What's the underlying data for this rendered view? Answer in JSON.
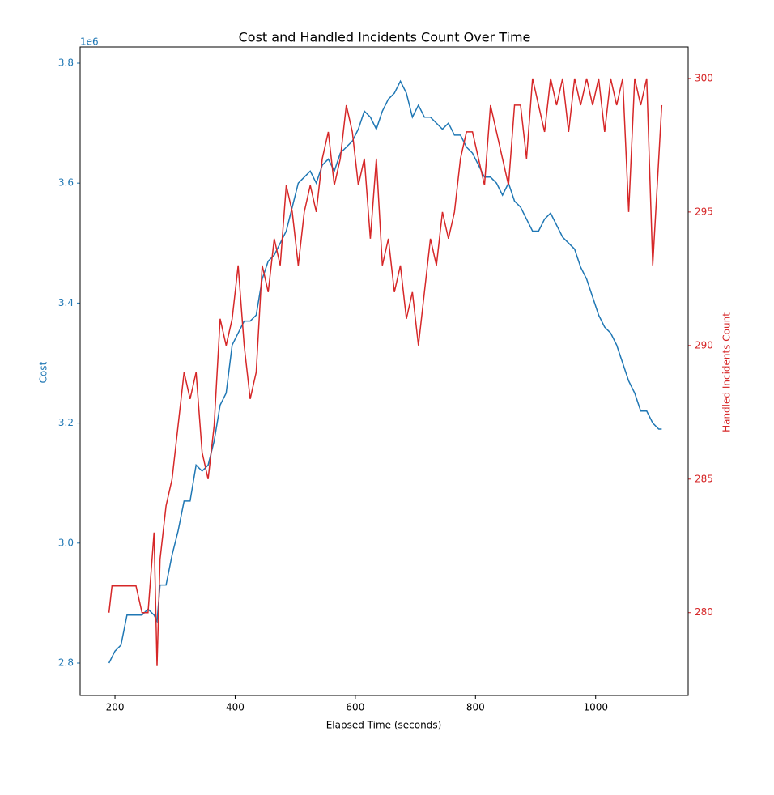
{
  "chart_data": {
    "type": "line",
    "title": "Cost and Handled Incidents Count Over Time",
    "xlabel": "Elapsed Time (seconds)",
    "ylabel": "Cost",
    "y2label": "Handled Incidents Count",
    "y_offset_label": "1e6",
    "x": [
      190,
      195,
      200,
      210,
      220,
      225,
      235,
      245,
      255,
      265,
      270,
      275,
      285,
      295,
      305,
      315,
      325,
      335,
      345,
      355,
      365,
      375,
      385,
      395,
      405,
      415,
      425,
      435,
      445,
      455,
      465,
      475,
      485,
      495,
      505,
      515,
      525,
      535,
      545,
      555,
      565,
      575,
      585,
      595,
      605,
      615,
      625,
      635,
      645,
      655,
      665,
      675,
      685,
      695,
      705,
      715,
      725,
      735,
      745,
      755,
      765,
      775,
      785,
      795,
      805,
      815,
      825,
      835,
      845,
      855,
      865,
      875,
      885,
      895,
      905,
      915,
      925,
      935,
      945,
      955,
      965,
      975,
      985,
      995,
      1005,
      1015,
      1025,
      1035,
      1045,
      1055,
      1065,
      1075,
      1085,
      1095,
      1105,
      1110
    ],
    "series": [
      {
        "name": "Cost",
        "color": "#1f77b4",
        "axis": "y",
        "values": [
          2.8,
          2.81,
          2.82,
          2.83,
          2.88,
          2.88,
          2.88,
          2.88,
          2.89,
          2.88,
          2.87,
          2.93,
          2.93,
          2.98,
          3.02,
          3.07,
          3.07,
          3.13,
          3.12,
          3.13,
          3.17,
          3.23,
          3.25,
          3.33,
          3.35,
          3.37,
          3.37,
          3.38,
          3.44,
          3.47,
          3.48,
          3.5,
          3.52,
          3.56,
          3.6,
          3.61,
          3.62,
          3.6,
          3.63,
          3.64,
          3.62,
          3.65,
          3.66,
          3.67,
          3.69,
          3.72,
          3.71,
          3.69,
          3.72,
          3.74,
          3.75,
          3.77,
          3.75,
          3.71,
          3.73,
          3.71,
          3.71,
          3.7,
          3.69,
          3.7,
          3.68,
          3.68,
          3.66,
          3.65,
          3.63,
          3.61,
          3.61,
          3.6,
          3.58,
          3.6,
          3.57,
          3.56,
          3.54,
          3.52,
          3.52,
          3.54,
          3.55,
          3.53,
          3.51,
          3.5,
          3.49,
          3.46,
          3.44,
          3.41,
          3.38,
          3.36,
          3.35,
          3.33,
          3.3,
          3.27,
          3.25,
          3.22,
          3.22,
          3.2,
          3.19,
          3.19
        ]
      },
      {
        "name": "Handled Incidents Count",
        "color": "#d62728",
        "axis": "y2",
        "values": [
          280,
          281,
          281,
          281,
          281,
          281,
          281,
          280,
          280,
          283,
          278,
          282,
          284,
          285,
          287,
          289,
          288,
          289,
          286,
          285,
          287,
          291,
          290,
          291,
          293,
          290,
          288,
          289,
          293,
          292,
          294,
          293,
          296,
          295,
          293,
          295,
          296,
          295,
          297,
          298,
          296,
          297,
          299,
          298,
          296,
          297,
          294,
          297,
          293,
          294,
          292,
          293,
          291,
          292,
          290,
          292,
          294,
          293,
          295,
          294,
          295,
          297,
          298,
          298,
          297,
          296,
          299,
          298,
          297,
          296,
          299,
          299,
          297,
          300,
          299,
          298,
          300,
          299,
          300,
          298,
          300,
          299,
          300,
          299,
          300,
          298,
          300,
          299,
          300,
          295,
          300,
          299,
          300,
          293,
          297,
          299
        ]
      }
    ],
    "xlim": [
      142,
      1154
    ],
    "xticks": [
      200,
      400,
      600,
      800,
      1000
    ],
    "ylim": [
      2.746,
      3.827
    ],
    "yticks": [
      2.8,
      {
        "value": 3.0,
        "label": "3.0"
      },
      3.2,
      3.4,
      3.6,
      3.8
    ],
    "y2lim": [
      276.9,
      301.18
    ],
    "y2ticks": [
      280,
      285,
      290,
      295,
      300
    ]
  }
}
